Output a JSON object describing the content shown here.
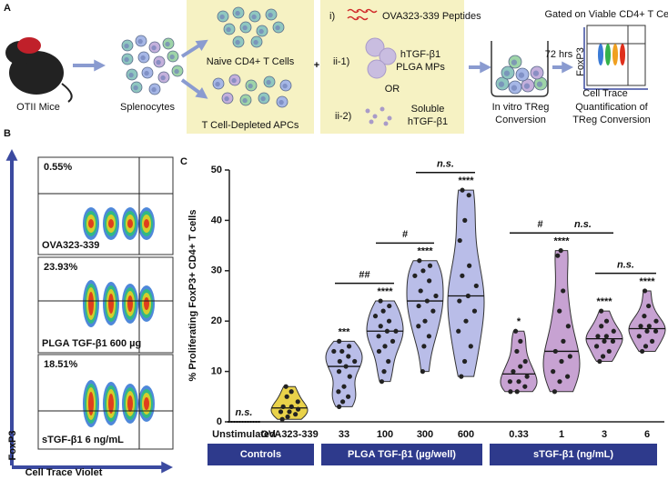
{
  "panel_a": {
    "label": "A",
    "mouse": "OTII Mice",
    "splenocytes": "Splenocytes",
    "naive": "Naive CD4+ T Cells",
    "apcs": "T Cell-Depleted APCs",
    "step_i": "i)",
    "peptides": "OVA323-339 Peptides",
    "step_ii1": "ii-1)",
    "mps": [
      "hTGF-β1",
      "PLGA MPs"
    ],
    "or": "OR",
    "step_ii2": "ii-2)",
    "soluble": [
      "Soluble",
      "hTGF-β1"
    ],
    "culture": [
      "In vitro TReg",
      "Conversion"
    ],
    "duration": "72 hrs",
    "gating": "Gated on Viable CD4+ T Cells",
    "gate_y": "FoxP3",
    "gate_x": "Cell Trace",
    "quant": [
      "Quantification of",
      "TReg Conversion"
    ]
  },
  "panel_b": {
    "label": "B",
    "y_label": "FoxP3",
    "x_label": "Cell Trace Violet",
    "plots": [
      {
        "percent": "0.55%",
        "condition": "OVA323-339"
      },
      {
        "percent": "23.93%",
        "condition": "PLGA TGF-β1 600 µg"
      },
      {
        "percent": "18.51%",
        "condition": "sTGF-β1 6 ng/mL"
      }
    ]
  },
  "chart_data": {
    "type": "violin",
    "panel_label": "C",
    "ylabel": "% Proliferating FoxP3+ CD4+ T cells",
    "ylim": [
      0,
      50
    ],
    "yticks": [
      0,
      10,
      20,
      30,
      40,
      50
    ],
    "groups": [
      {
        "name": "Controls",
        "colors": [
          "#000000",
          "#e9d24a"
        ],
        "categories": [
          "Unstimulated",
          "OVA323-339"
        ],
        "values": [
          [
            0,
            0,
            0,
            0,
            0,
            0,
            0,
            0,
            0,
            0,
            0,
            0
          ],
          [
            0.5,
            1,
            1.5,
            2,
            2,
            2.5,
            3,
            3,
            4,
            5,
            6,
            7
          ]
        ],
        "annotations": [
          "n.s.",
          null
        ],
        "comparisons": []
      },
      {
        "name": "PLGA TGF-β1 (µg/well)",
        "colors": [
          "#b9bde8",
          "#b9bde8",
          "#b9bde8",
          "#b9bde8"
        ],
        "categories": [
          "33",
          "100",
          "300",
          "600"
        ],
        "values": [
          [
            3,
            4,
            5,
            6,
            7,
            9,
            10,
            11,
            12,
            12,
            13,
            14,
            14,
            15,
            16
          ],
          [
            8,
            10,
            12,
            14,
            15,
            16,
            17,
            18,
            18,
            19,
            20,
            21,
            22,
            23,
            24
          ],
          [
            10,
            15,
            17,
            19,
            20,
            22,
            23,
            24,
            25,
            26,
            28,
            29,
            30,
            31,
            32
          ],
          [
            9,
            12,
            15,
            18,
            20,
            22,
            24,
            25,
            27,
            29,
            31,
            36,
            40,
            45,
            46
          ]
        ],
        "annotations": [
          "***",
          "****",
          "****",
          "****"
        ],
        "comparisons": [
          {
            "pair": [
              "33",
              "100"
            ],
            "label": "##"
          },
          {
            "pair": [
              "100",
              "300"
            ],
            "label": "#"
          },
          {
            "pair": [
              "300",
              "600"
            ],
            "label": "n.s."
          }
        ]
      },
      {
        "name": "sTGF-β1 (ng/mL)",
        "colors": [
          "#c7a2d2",
          "#c7a2d2",
          "#c7a2d2",
          "#c7a2d2"
        ],
        "categories": [
          "0.33",
          "1",
          "3",
          "6"
        ],
        "values": [
          [
            6,
            6,
            7,
            8,
            8,
            9,
            10,
            11,
            12,
            14,
            16,
            18
          ],
          [
            6,
            8,
            9,
            10,
            12,
            13,
            14,
            16,
            19,
            22,
            26,
            33,
            34
          ],
          [
            12,
            13,
            14,
            15,
            16,
            16,
            17,
            17,
            18,
            19,
            20,
            22
          ],
          [
            14,
            15,
            16,
            17,
            18,
            18,
            19,
            19,
            20,
            21,
            23,
            26
          ]
        ],
        "annotations": [
          "*",
          "****",
          "****",
          "****"
        ],
        "comparisons": [
          {
            "pair": [
              "0.33",
              "1"
            ],
            "label": "#"
          },
          {
            "pair": [
              "1",
              "3"
            ],
            "label": "n.s."
          },
          {
            "pair": [
              "3",
              "6"
            ],
            "label": "n.s."
          }
        ]
      }
    ]
  }
}
